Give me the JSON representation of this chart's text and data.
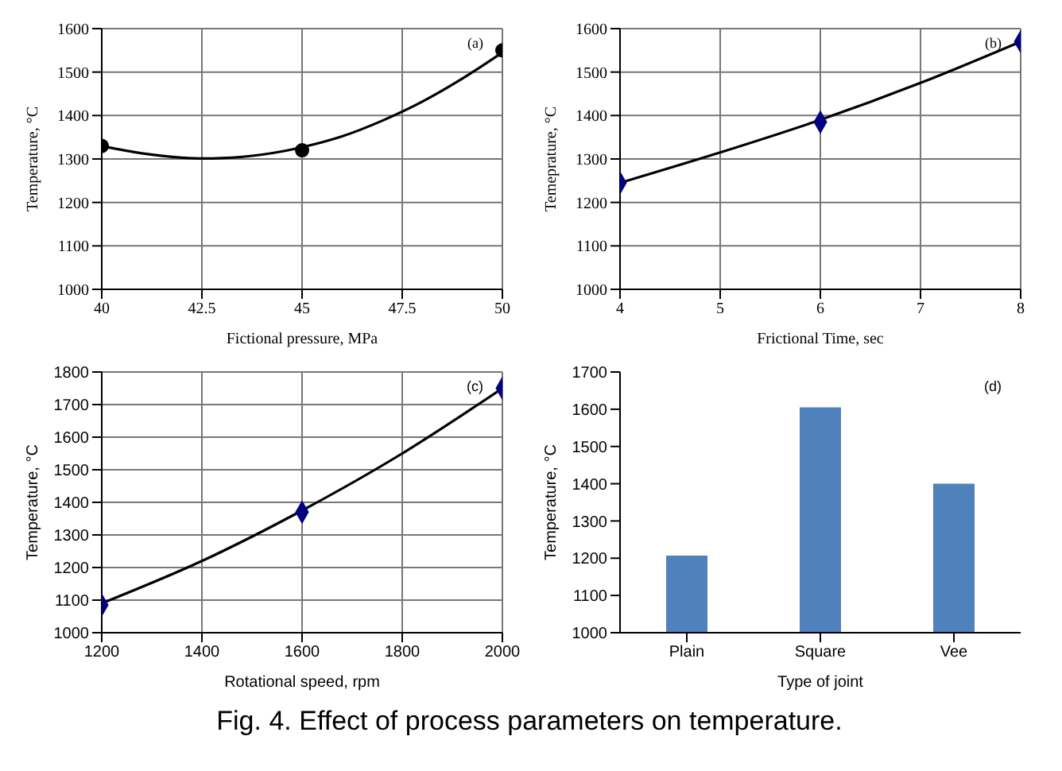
{
  "chart_data": [
    {
      "type": "line",
      "xlabel": "Fictional pressure, MPa",
      "ylabel": "Temperature, °C",
      "annotations": [
        "(a)"
      ],
      "xlim": [
        40,
        50
      ],
      "xticks": [
        40,
        42.5,
        45,
        47.5,
        50
      ],
      "ylim": [
        1000,
        1600
      ],
      "yticks": [
        1000,
        1100,
        1200,
        1300,
        1400,
        1500,
        1600
      ],
      "grid": true,
      "series": [
        {
          "type": "scatter",
          "color": "#000000",
          "marker": "circle",
          "x": [
            40,
            45,
            50
          ],
          "values": [
            1330,
            1320,
            1550
          ]
        },
        {
          "type": "line",
          "color": "#000000",
          "x": [
            40,
            41,
            42,
            42.5,
            43,
            44,
            45,
            46,
            47,
            48,
            49,
            50
          ],
          "values": [
            1330,
            1313,
            1303,
            1301,
            1302,
            1310,
            1327,
            1352,
            1388,
            1432,
            1485,
            1545
          ]
        }
      ]
    },
    {
      "type": "line",
      "xlabel": "Frictional Time, sec",
      "ylabel": "Temeprature, °C",
      "annotations": [
        "(b)"
      ],
      "xlim": [
        4,
        8
      ],
      "xticks": [
        4,
        5,
        6,
        7,
        8
      ],
      "ylim": [
        1000,
        1600
      ],
      "yticks": [
        1000,
        1100,
        1200,
        1300,
        1400,
        1500,
        1600
      ],
      "grid": true,
      "series": [
        {
          "type": "scatter",
          "color": "#000080",
          "marker": "diamond",
          "x": [
            4,
            6,
            8
          ],
          "values": [
            1245,
            1385,
            1570
          ]
        },
        {
          "type": "line",
          "color": "#000000",
          "x": [
            4,
            5,
            6,
            7,
            8
          ],
          "values": [
            1245,
            1315,
            1390,
            1475,
            1570
          ]
        }
      ]
    },
    {
      "type": "line",
      "xlabel": "Rotational speed, rpm",
      "ylabel": "Temperature, °C",
      "annotations": [
        "(c)"
      ],
      "xlim": [
        1200,
        2000
      ],
      "xticks": [
        1200,
        1400,
        1600,
        1800,
        2000
      ],
      "ylim": [
        1000,
        1800
      ],
      "yticks": [
        1000,
        1100,
        1200,
        1300,
        1400,
        1500,
        1600,
        1700,
        1800
      ],
      "grid": true,
      "series": [
        {
          "type": "scatter",
          "color": "#000080",
          "marker": "diamond",
          "x": [
            1200,
            1600,
            2000
          ],
          "values": [
            1085,
            1370,
            1750
          ]
        },
        {
          "type": "line",
          "color": "#000000",
          "x": [
            1200,
            1400,
            1600,
            1800,
            2000
          ],
          "values": [
            1090,
            1220,
            1375,
            1550,
            1750
          ]
        }
      ]
    },
    {
      "type": "bar",
      "xlabel": "Type of joint",
      "ylabel": "Temperature, °C",
      "annotations": [
        "(d)",
        "Fig. 4. Effect of process parameters on temperature."
      ],
      "categories": [
        "Plain",
        "Square",
        "Vee"
      ],
      "values": [
        1207,
        1605,
        1400
      ],
      "color": "#4f81bd",
      "ylim": [
        1000,
        1700
      ],
      "yticks": [
        1000,
        1100,
        1200,
        1300,
        1400,
        1500,
        1600,
        1700
      ]
    }
  ]
}
